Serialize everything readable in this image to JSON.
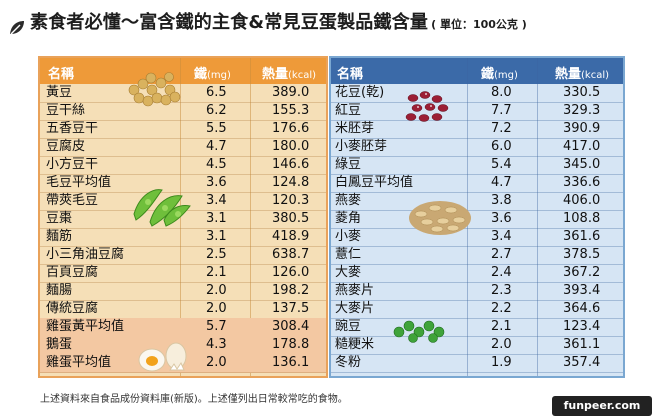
{
  "title": "素食者必懂～富含鐵的主食&常見豆蛋製品鐵含量",
  "unit_note": "( 單位：100公克 )",
  "headers": {
    "left": {
      "name": "名稱",
      "iron": "鐵",
      "iron_unit": "(mg)",
      "kcal": "熱量",
      "kcal_unit": "(kcal)"
    },
    "right": {
      "name": "名稱",
      "iron": "鐵",
      "iron_unit": "(mg)",
      "kcal": "熱量",
      "kcal_unit": "(kcal)"
    }
  },
  "footer": "上述資料來自食品成份資料庫(新版)。上述僅列出日常較常吃的食物。",
  "watermark": "funpeer.com",
  "colors": {
    "left_header": "#ee9a39",
    "right_header": "#3b6aa8",
    "egg_rows": "#f3c8a2"
  },
  "chart_data": {
    "type": "table",
    "title": "素食者必懂～富含鐵的主食&常見豆蛋製品鐵含量",
    "unit": "單位：100公克",
    "columns": [
      "名稱",
      "鐵(mg)",
      "熱量(kcal)"
    ],
    "tables": [
      {
        "rows": [
          [
            "黃豆",
            "6.5",
            "389.0"
          ],
          [
            "豆干絲",
            "6.2",
            "155.3"
          ],
          [
            "五香豆干",
            "5.5",
            "176.6"
          ],
          [
            "豆腐皮",
            "4.7",
            "180.0"
          ],
          [
            "小方豆干",
            "4.5",
            "146.6"
          ],
          [
            "毛豆平均值",
            "3.6",
            "124.8"
          ],
          [
            "帶莢毛豆",
            "3.4",
            "120.3"
          ],
          [
            "豆棗",
            "3.1",
            "380.5"
          ],
          [
            "麵筋",
            "3.1",
            "418.9"
          ],
          [
            "小三角油豆腐",
            "2.5",
            "638.7"
          ],
          [
            "百頁豆腐",
            "2.1",
            "126.0"
          ],
          [
            "麵腸",
            "2.0",
            "198.2"
          ],
          [
            "傳統豆腐",
            "2.0",
            "137.5"
          ],
          [
            "雞蛋黃平均值",
            "5.7",
            "308.4"
          ],
          [
            "鵝蛋",
            "4.3",
            "178.8"
          ],
          [
            "雞蛋平均值",
            "2.0",
            "136.1"
          ]
        ]
      },
      {
        "rows": [
          [
            "花豆(乾)",
            "8.0",
            "330.5"
          ],
          [
            "紅豆",
            "7.7",
            "329.3"
          ],
          [
            "米胚芽",
            "7.2",
            "390.9"
          ],
          [
            "小麥胚芽",
            "6.0",
            "417.0"
          ],
          [
            "綠豆",
            "5.4",
            "345.0"
          ],
          [
            "白鳳豆平均值",
            "4.7",
            "336.6"
          ],
          [
            "燕麥",
            "3.8",
            "406.0"
          ],
          [
            "菱角",
            "3.6",
            "108.8"
          ],
          [
            "小麥",
            "3.4",
            "361.6"
          ],
          [
            "薏仁",
            "2.7",
            "378.5"
          ],
          [
            "大麥",
            "2.4",
            "367.2"
          ],
          [
            "燕麥片",
            "2.3",
            "393.4"
          ],
          [
            "大麥片",
            "2.2",
            "364.6"
          ],
          [
            "豌豆",
            "2.1",
            "123.4"
          ],
          [
            "糙粳米",
            "2.0",
            "361.1"
          ],
          [
            "冬粉",
            "1.9",
            "357.4"
          ]
        ]
      }
    ]
  }
}
